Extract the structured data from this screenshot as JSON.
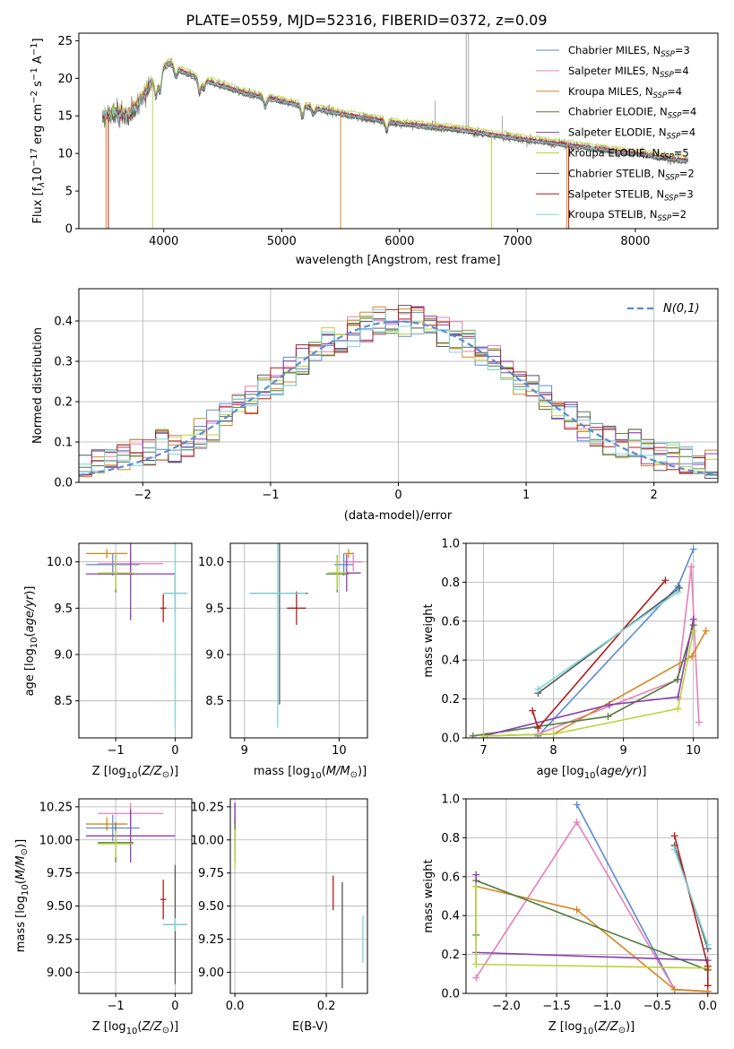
{
  "chart_data": [
    {
      "id": "spectrum",
      "type": "line",
      "title": "PLATE=0559, MJD=52316, FIBERID=0372, z=0.09",
      "xlabel": "wavelength [Angstrom, rest frame]",
      "ylabel": "Flux [f_λ 10^-17 erg cm^-2 s^-1 A^-1]",
      "xlim": [
        3280,
        8700
      ],
      "ylim": [
        0,
        26
      ],
      "xticks": [
        4000,
        5000,
        6000,
        7000,
        8000
      ],
      "yticks": [
        0,
        5,
        10,
        15,
        20,
        25
      ],
      "continuum_x": [
        3500,
        3600,
        3700,
        3800,
        3900,
        4000,
        4050,
        4150,
        4300,
        4500,
        4700,
        5000,
        5500,
        6000,
        6500,
        7000,
        7500,
        8000,
        8450
      ],
      "continuum_y": [
        15.0,
        15.5,
        15.0,
        17.0,
        19.5,
        21.5,
        22.0,
        21.0,
        20.0,
        19.0,
        18.0,
        17.0,
        15.3,
        14.0,
        13.2,
        12.0,
        11.0,
        10.0,
        9.0
      ],
      "legend": [
        {
          "label": "Chabrier MILES",
          "n": "3",
          "color": "#5b8ad6"
        },
        {
          "label": "Salpeter MILES",
          "n": "4",
          "color": "#e87fb8"
        },
        {
          "label": "Kroupa MILES",
          "n": "4",
          "color": "#d5861e"
        },
        {
          "label": "Chabrier ELODIE",
          "n": "4",
          "color": "#4f7d3f"
        },
        {
          "label": "Salpeter ELODIE",
          "n": "4",
          "color": "#8a3fb0"
        },
        {
          "label": "Kroupa ELODIE",
          "n": "5",
          "color": "#b8d43a"
        },
        {
          "label": "Chabrier STELIB",
          "n": "2",
          "color": "#555555"
        },
        {
          "label": "Salpeter STELIB",
          "n": "3",
          "color": "#b01c1c"
        },
        {
          "label": "Kroupa STELIB",
          "n": "2",
          "color": "#7ed6d6"
        }
      ],
      "legend_placement": "upper right",
      "nssp_label": "N",
      "nssp_sub": "SSP",
      "grid": false
    },
    {
      "id": "residuals",
      "type": "histogram",
      "xlabel": "(data-model)/error",
      "ylabel": "Normed distribution",
      "xlim": [
        -2.5,
        2.5
      ],
      "ylim": [
        0,
        0.48
      ],
      "xticks": [
        -2,
        -1,
        0,
        1,
        2
      ],
      "yticks": [
        0.0,
        0.1,
        0.2,
        0.3,
        0.4
      ],
      "bin_width": 0.1,
      "reference_label": "N(0,1)",
      "reference_color": "#5b8ad6",
      "legend_placement": "upper right",
      "grid": true
    },
    {
      "id": "age_vs_Z",
      "type": "scatter",
      "xlabel": "Z [log10(Z/Z⊙)]",
      "ylabel": "age [log10(age/yr)]",
      "xlim": [
        -1.62,
        0.28
      ],
      "ylim": [
        8.1,
        10.2
      ],
      "xticks": [
        -1,
        0
      ],
      "yticks": [
        8.5,
        9.0,
        9.5,
        10.0
      ],
      "points": [
        {
          "x": -1.05,
          "y": 9.97,
          "xerr": 0.45,
          "yerr": 0.12,
          "color": "#5b8ad6"
        },
        {
          "x": -0.75,
          "y": 9.98,
          "xerr": 0.55,
          "yerr": 0.12,
          "color": "#e87fb8"
        },
        {
          "x": -1.15,
          "y": 10.09,
          "xerr": 0.35,
          "yerr": 0.05,
          "color": "#d5861e"
        },
        {
          "x": -1.0,
          "y": 9.87,
          "xerr": 0.3,
          "yerr": 0.2,
          "color": "#4f7d3f"
        },
        {
          "x": -0.75,
          "y": 9.87,
          "xerr": 0.75,
          "yerr": 0.5,
          "color": "#8a3fb0"
        },
        {
          "x": -1.0,
          "y": 9.88,
          "xerr": 0.3,
          "yerr": 0.18,
          "color": "#b8d43a"
        },
        {
          "x": 0.0,
          "y": 9.66,
          "xerr": 0.2,
          "yerr": 0.2,
          "color": "#555555"
        },
        {
          "x": -0.2,
          "y": 9.5,
          "xerr": 0.05,
          "yerr": 0.15,
          "color": "#b01c1c"
        },
        {
          "x": 0.0,
          "y": 9.66,
          "xerr": 0.2,
          "yerr": 1.45,
          "color": "#7ed6d6"
        }
      ],
      "grid": true
    },
    {
      "id": "age_vs_mass",
      "type": "scatter",
      "xlabel": "mass [log10(M/M⊙)]",
      "ylabel": "",
      "xlim": [
        8.85,
        10.3
      ],
      "ylim": [
        8.1,
        10.2
      ],
      "xticks": [
        9,
        10
      ],
      "yticks": [
        8.5,
        9.0,
        9.5,
        10.0
      ],
      "points": [
        {
          "x": 10.05,
          "y": 9.97,
          "xerr": 0.1,
          "yerr": 0.12,
          "color": "#5b8ad6"
        },
        {
          "x": 10.15,
          "y": 10.0,
          "xerr": 0.1,
          "yerr": 0.1,
          "color": "#e87fb8"
        },
        {
          "x": 10.1,
          "y": 10.09,
          "xerr": 0.05,
          "yerr": 0.05,
          "color": "#d5861e"
        },
        {
          "x": 9.98,
          "y": 9.87,
          "xerr": 0.12,
          "yerr": 0.2,
          "color": "#4f7d3f"
        },
        {
          "x": 10.08,
          "y": 9.88,
          "xerr": 0.15,
          "yerr": 0.2,
          "color": "#8a3fb0"
        },
        {
          "x": 9.98,
          "y": 9.88,
          "xerr": 0.1,
          "yerr": 0.18,
          "color": "#b8d43a"
        },
        {
          "x": 9.37,
          "y": 9.66,
          "xerr": 0.3,
          "yerr": 1.2,
          "color": "#555555"
        },
        {
          "x": 9.55,
          "y": 9.5,
          "xerr": 0.1,
          "yerr": 0.18,
          "color": "#b01c1c"
        },
        {
          "x": 9.35,
          "y": 9.66,
          "xerr": 0.3,
          "yerr": 1.45,
          "color": "#7ed6d6"
        }
      ],
      "grid": true
    },
    {
      "id": "massweight_vs_age",
      "type": "line",
      "xlabel": "age [log10(age/yr)]",
      "ylabel": "mass weight",
      "xlim": [
        6.75,
        10.35
      ],
      "ylim": [
        0,
        1.0
      ],
      "xticks": [
        7,
        8,
        9,
        10
      ],
      "yticks": [
        0.0,
        0.2,
        0.4,
        0.6,
        0.8,
        1.0
      ],
      "series": [
        {
          "color": "#5b8ad6",
          "x": [
            7.78,
            9.78,
            10.0
          ],
          "y": [
            0.01,
            0.78,
            0.97
          ]
        },
        {
          "color": "#e87fb8",
          "x": [
            7.78,
            9.78,
            9.97,
            10.08
          ],
          "y": [
            0.02,
            0.3,
            0.88,
            0.08
          ]
        },
        {
          "color": "#d5861e",
          "x": [
            7.05,
            8.0,
            9.98,
            10.18
          ],
          "y": [
            0.01,
            0.02,
            0.42,
            0.55
          ]
        },
        {
          "color": "#4f7d3f",
          "x": [
            6.85,
            8.78,
            9.77,
            10.0
          ],
          "y": [
            0.01,
            0.11,
            0.3,
            0.58
          ]
        },
        {
          "color": "#8a3fb0",
          "x": [
            7.0,
            8.8,
            9.78,
            10.0
          ],
          "y": [
            0.01,
            0.17,
            0.21,
            0.61
          ]
        },
        {
          "color": "#b8d43a",
          "x": [
            7.0,
            8.0,
            9.78,
            10.0
          ],
          "y": [
            0.01,
            0.02,
            0.15,
            0.55
          ]
        },
        {
          "color": "#555555",
          "x": [
            7.78,
            9.8
          ],
          "y": [
            0.23,
            0.77
          ]
        },
        {
          "color": "#b01c1c",
          "x": [
            7.7,
            7.78,
            9.6
          ],
          "y": [
            0.14,
            0.05,
            0.81
          ]
        },
        {
          "color": "#7ed6d6",
          "x": [
            7.78,
            9.78
          ],
          "y": [
            0.25,
            0.75
          ]
        }
      ],
      "grid": true
    },
    {
      "id": "mass_vs_Z",
      "type": "scatter",
      "xlabel": "Z [log10(Z/Z⊙)]",
      "ylabel": "mass [log10(M/M⊙)]",
      "xlim": [
        -1.62,
        0.28
      ],
      "ylim": [
        8.84,
        10.31
      ],
      "xticks": [
        -1,
        0
      ],
      "yticks": [
        9.0,
        9.25,
        9.5,
        9.75,
        10.0,
        10.25
      ],
      "points": [
        {
          "x": -1.05,
          "y": 10.09,
          "xerr": 0.45,
          "yerr": 0.1,
          "color": "#5b8ad6"
        },
        {
          "x": -0.75,
          "y": 10.2,
          "xerr": 0.55,
          "yerr": 0.08,
          "color": "#e87fb8"
        },
        {
          "x": -1.15,
          "y": 10.12,
          "xerr": 0.35,
          "yerr": 0.05,
          "color": "#d5861e"
        },
        {
          "x": -1.0,
          "y": 9.98,
          "xerr": 0.3,
          "yerr": 0.15,
          "color": "#4f7d3f"
        },
        {
          "x": -0.75,
          "y": 10.03,
          "xerr": 0.75,
          "yerr": 0.2,
          "color": "#8a3fb0"
        },
        {
          "x": -1.0,
          "y": 9.97,
          "xerr": 0.3,
          "yerr": 0.1,
          "color": "#b8d43a"
        },
        {
          "x": 0.0,
          "y": 9.36,
          "xerr": 0.2,
          "yerr": 0.45,
          "color": "#555555"
        },
        {
          "x": -0.2,
          "y": 9.55,
          "xerr": 0.05,
          "yerr": 0.15,
          "color": "#b01c1c"
        },
        {
          "x": 0.0,
          "y": 9.36,
          "xerr": 0.2,
          "yerr": 0.05,
          "color": "#7ed6d6"
        }
      ],
      "grid": true
    },
    {
      "id": "mass_vs_ebv",
      "type": "scatter",
      "xlabel": "E(B-V)",
      "ylabel": "",
      "xlim": [
        -0.01,
        0.29
      ],
      "ylim": [
        8.84,
        10.31
      ],
      "xticks": [
        0.0,
        0.2
      ],
      "yticks": [
        9.0,
        9.25,
        9.5,
        9.75,
        10.0,
        10.25
      ],
      "points": [
        {
          "x": 0.0,
          "y": 10.09,
          "xerr": 0.0,
          "yerr": 0.1,
          "color": "#5b8ad6"
        },
        {
          "x": 0.0,
          "y": 10.2,
          "xerr": 0.0,
          "yerr": 0.08,
          "color": "#e87fb8"
        },
        {
          "x": 0.0,
          "y": 10.12,
          "xerr": 0.0,
          "yerr": 0.05,
          "color": "#d5861e"
        },
        {
          "x": 0.0,
          "y": 9.98,
          "xerr": 0.0,
          "yerr": 0.15,
          "color": "#4f7d3f"
        },
        {
          "x": 0.0,
          "y": 10.2,
          "xerr": 0.0,
          "yerr": 0.08,
          "color": "#8a3fb0"
        },
        {
          "x": 0.0,
          "y": 9.93,
          "xerr": 0.0,
          "yerr": 0.15,
          "color": "#b8d43a"
        },
        {
          "x": 0.235,
          "y": 9.28,
          "xerr": 0.0,
          "yerr": 0.4,
          "color": "#555555"
        },
        {
          "x": 0.215,
          "y": 9.6,
          "xerr": 0.0,
          "yerr": 0.13,
          "color": "#b01c1c"
        },
        {
          "x": 0.28,
          "y": 9.25,
          "xerr": 0.0,
          "yerr": 0.18,
          "color": "#7ed6d6"
        }
      ],
      "grid": true
    },
    {
      "id": "massweight_vs_Z",
      "type": "line",
      "xlabel": "Z [log10(Z/Z⊙)]",
      "ylabel": "mass weight",
      "xlim": [
        -2.4,
        0.1
      ],
      "ylim": [
        0,
        1.0
      ],
      "xticks": [
        -2.0,
        -1.5,
        -1.0,
        -0.5,
        0.0
      ],
      "yticks": [
        0.0,
        0.2,
        0.4,
        0.6,
        0.8,
        1.0
      ],
      "series": [
        {
          "color": "#5b8ad6",
          "x": [
            -1.3,
            -0.33,
            0.0
          ],
          "y": [
            0.97,
            0.02,
            0.01
          ]
        },
        {
          "color": "#e87fb8",
          "x": [
            -2.3,
            -1.3,
            -0.33,
            0.0
          ],
          "y": [
            0.08,
            0.88,
            0.02,
            0.01
          ]
        },
        {
          "color": "#d5861e",
          "x": [
            -2.3,
            -1.3,
            -0.33,
            0.0
          ],
          "y": [
            0.55,
            0.43,
            0.02,
            0.01
          ]
        },
        {
          "color": "#4f7d3f",
          "x": [
            -2.3,
            -2.3,
            0.0
          ],
          "y": [
            0.3,
            0.58,
            0.12
          ]
        },
        {
          "color": "#8a3fb0",
          "x": [
            -2.3,
            -2.3,
            0.0
          ],
          "y": [
            0.61,
            0.21,
            0.17
          ]
        },
        {
          "color": "#b8d43a",
          "x": [
            -2.3,
            -2.3,
            0.0
          ],
          "y": [
            0.55,
            0.15,
            0.13
          ]
        },
        {
          "color": "#555555",
          "x": [
            -0.33,
            0.0
          ],
          "y": [
            0.76,
            0.23
          ]
        },
        {
          "color": "#b01c1c",
          "x": [
            -0.33,
            0.0,
            0.0
          ],
          "y": [
            0.81,
            0.14,
            0.04
          ]
        },
        {
          "color": "#7ed6d6",
          "x": [
            -0.33,
            0.0
          ],
          "y": [
            0.74,
            0.25
          ]
        }
      ],
      "grid": true
    }
  ]
}
